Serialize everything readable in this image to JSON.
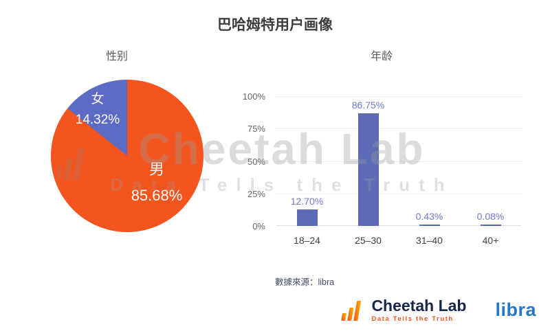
{
  "title": "巴哈姆特用户画像",
  "watermark": {
    "line1": "Cheetah Lab",
    "line2": "Data Tells the Truth"
  },
  "source_note": "數據來源：libra",
  "footer": {
    "brand": "Cheetah Lab",
    "tagline": "Data Tells the Truth",
    "partner": "libra"
  },
  "colors": {
    "pie_male_orange": "#f4541e",
    "pie_female_blue": "#5c6cc5",
    "bar_blue": "#5b6bb5",
    "value_label_blue": "#7179ca",
    "brand_navy": "#16264c",
    "brand_orange": "#f4541e",
    "partner_blue": "#2878c8"
  },
  "chart_data": [
    {
      "type": "pie",
      "title": "性别",
      "slices": [
        {
          "label": "男",
          "value": 85.68,
          "display": "85.68%",
          "color": "#f4541e"
        },
        {
          "label": "女",
          "value": 14.32,
          "display": "14.32%",
          "color": "#5c6cc5"
        }
      ],
      "start_angle": "top",
      "direction": "clockwise",
      "legend": "none"
    },
    {
      "type": "bar",
      "title": "年龄",
      "categories": [
        "18–24",
        "25–30",
        "31–40",
        "40+"
      ],
      "values": [
        12.7,
        86.75,
        0.43,
        0.08
      ],
      "value_labels": [
        "12.70%",
        "86.75%",
        "0.43%",
        "0.08%"
      ],
      "y_ticks": [
        "100%",
        "75%",
        "50%",
        "25%",
        "0%"
      ],
      "ylim": [
        0,
        100
      ],
      "bar_color": "#5b6bb5",
      "grid": true,
      "legend": "none"
    }
  ]
}
